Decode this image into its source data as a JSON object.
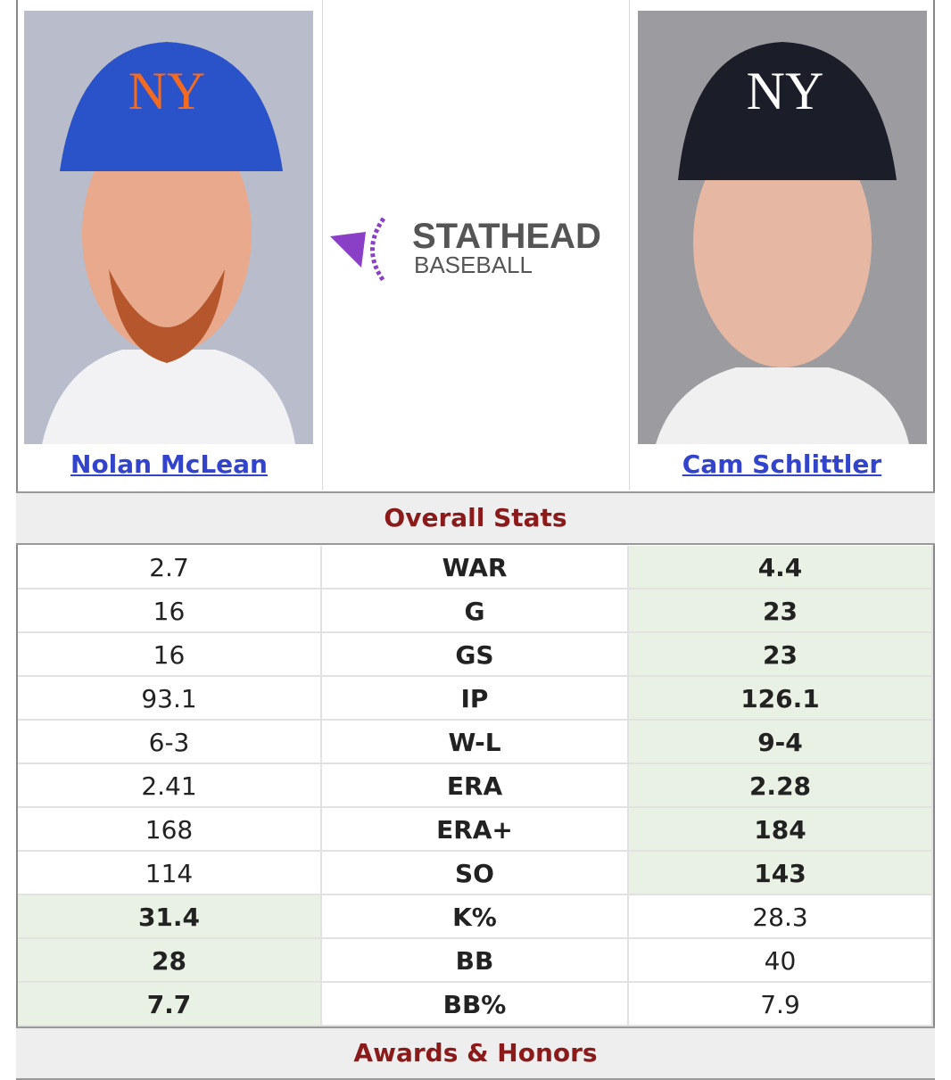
{
  "logo": {
    "title": "STATHEAD",
    "subtitle": "BASEBALL"
  },
  "players": [
    {
      "name": "Nolan McLean"
    },
    {
      "name": "Cam Schlittler"
    }
  ],
  "sections": [
    {
      "title": "Overall Stats",
      "rows": [
        {
          "stat": "WAR",
          "left": "2.7",
          "right": "4.4",
          "leader": "right"
        },
        {
          "stat": "G",
          "left": "16",
          "right": "23",
          "leader": "right"
        },
        {
          "stat": "GS",
          "left": "16",
          "right": "23",
          "leader": "right"
        },
        {
          "stat": "IP",
          "left": "93.1",
          "right": "126.1",
          "leader": "right"
        },
        {
          "stat": "W-L",
          "left": "6-3",
          "right": "9-4",
          "leader": "right"
        },
        {
          "stat": "ERA",
          "left": "2.41",
          "right": "2.28",
          "leader": "right"
        },
        {
          "stat": "ERA+",
          "left": "168",
          "right": "184",
          "leader": "right"
        },
        {
          "stat": "SO",
          "left": "114",
          "right": "143",
          "leader": "right"
        },
        {
          "stat": "K%",
          "left": "31.4",
          "right": "28.3",
          "leader": "left"
        },
        {
          "stat": "BB",
          "left": "28",
          "right": "40",
          "leader": "left"
        },
        {
          "stat": "BB%",
          "left": "7.7",
          "right": "7.9",
          "leader": "left"
        }
      ]
    },
    {
      "title": "Awards & Honors",
      "rows": []
    }
  ]
}
